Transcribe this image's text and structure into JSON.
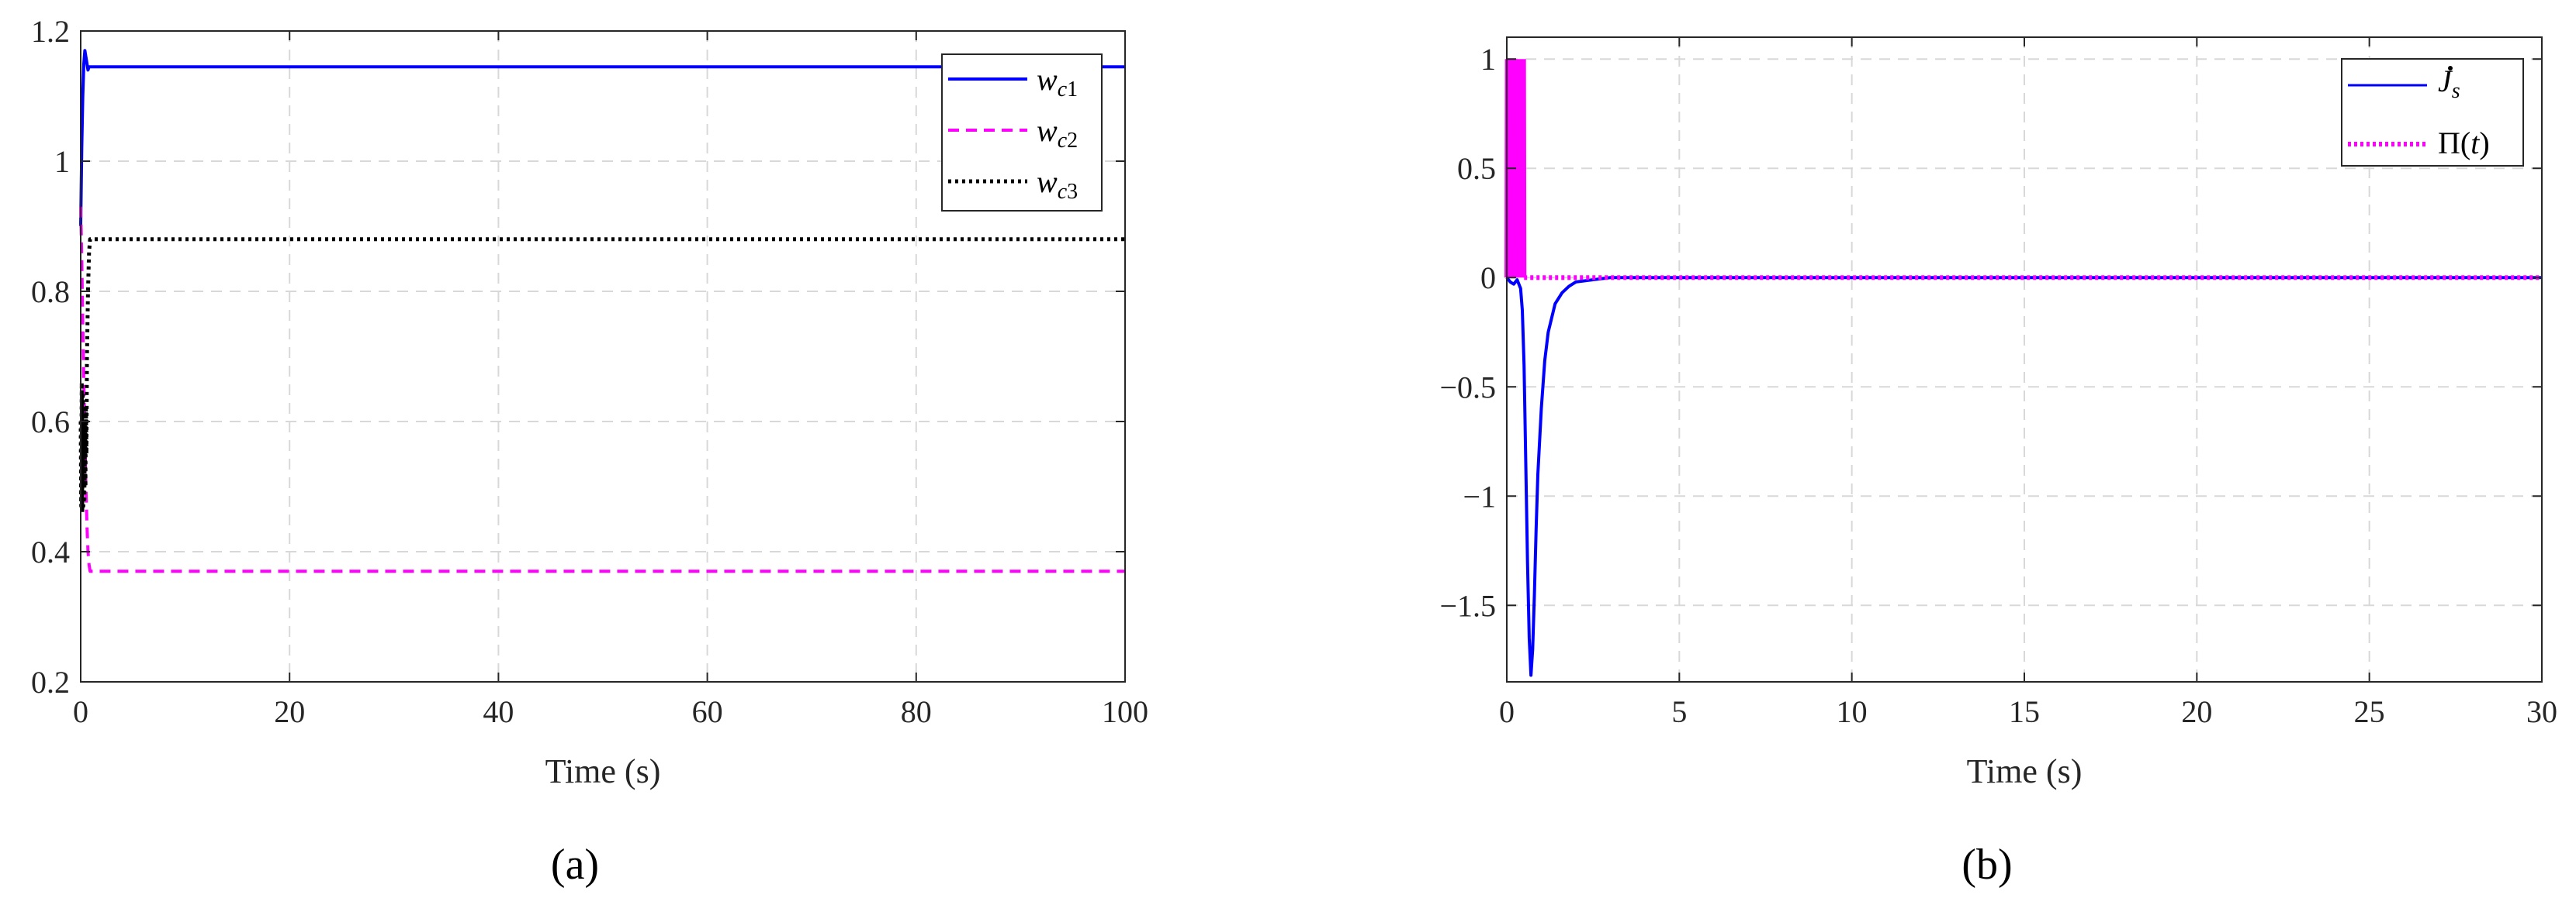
{
  "chart_data": [
    {
      "type": "line",
      "xlabel": "Time (s)",
      "ylabel": "",
      "xlim": [
        0,
        100
      ],
      "ylim": [
        0.2,
        1.2
      ],
      "xticks": [
        "0",
        "20",
        "40",
        "60",
        "80",
        "100"
      ],
      "yticks": [
        "0.2",
        "0.4",
        "0.6",
        "0.8",
        "1",
        "1.2"
      ],
      "grid": true,
      "legend_position": "top-right",
      "caption": "(a)",
      "series": [
        {
          "name": "w_c1",
          "color": "#0000ff",
          "style": "solid",
          "x": [
            0,
            0.1,
            0.2,
            0.3,
            0.4,
            0.5,
            0.6,
            0.7,
            0.8,
            0.9,
            1.0,
            100
          ],
          "y": [
            0.9,
            1.02,
            1.1,
            1.15,
            1.17,
            1.16,
            1.15,
            1.14,
            1.145,
            1.145,
            1.145,
            1.145
          ]
        },
        {
          "name": "w_c2",
          "color": "#ff00ff",
          "style": "dashed",
          "x": [
            0,
            0.1,
            0.2,
            0.3,
            0.4,
            0.5,
            0.6,
            0.7,
            0.8,
            0.9,
            1.0,
            100
          ],
          "y": [
            0.93,
            0.85,
            0.75,
            0.66,
            0.58,
            0.5,
            0.44,
            0.4,
            0.38,
            0.37,
            0.37,
            0.37
          ]
        },
        {
          "name": "w_c3",
          "color": "#000000",
          "style": "dotted",
          "x": [
            0,
            0.05,
            0.1,
            0.15,
            0.2,
            0.25,
            0.3,
            0.35,
            0.4,
            0.45,
            0.5,
            0.55,
            0.6,
            0.7,
            0.8,
            0.9,
            1.0,
            100
          ],
          "y": [
            0.6,
            0.47,
            0.66,
            0.46,
            0.64,
            0.47,
            0.62,
            0.48,
            0.6,
            0.5,
            0.62,
            0.55,
            0.7,
            0.8,
            0.86,
            0.88,
            0.88,
            0.88
          ]
        }
      ]
    },
    {
      "type": "line",
      "xlabel": "Time (s)",
      "ylabel": "",
      "xlim": [
        0,
        30
      ],
      "ylim": [
        -1.85,
        1.1
      ],
      "xticks": [
        "0",
        "5",
        "10",
        "15",
        "20",
        "25",
        "30"
      ],
      "yticks": [
        "-1.5",
        "-1",
        "-0.5",
        "0",
        "0.5",
        "1"
      ],
      "ytick_values": [
        -1.5,
        -1,
        -0.5,
        0,
        0.5,
        1
      ],
      "grid": true,
      "legend_position": "top-right",
      "caption": "(b)",
      "series": [
        {
          "name": "J_s",
          "color": "#0000ff",
          "style": "solid",
          "x": [
            0,
            0.1,
            0.2,
            0.3,
            0.4,
            0.45,
            0.5,
            0.55,
            0.6,
            0.65,
            0.7,
            0.75,
            0.8,
            0.85,
            0.9,
            1.0,
            1.1,
            1.2,
            1.4,
            1.6,
            1.8,
            2.0,
            2.5,
            3.0,
            30
          ],
          "y": [
            0,
            -0.02,
            -0.03,
            -0.01,
            -0.05,
            -0.15,
            -0.4,
            -0.85,
            -1.3,
            -1.65,
            -1.82,
            -1.7,
            -1.45,
            -1.15,
            -0.9,
            -0.6,
            -0.38,
            -0.25,
            -0.12,
            -0.07,
            -0.04,
            -0.02,
            -0.01,
            0,
            0
          ]
        },
        {
          "name": "Π(t)",
          "color": "#ff00ff",
          "style": "dotted",
          "pulse_end": 0.5,
          "pulse_amplitude": 1
        }
      ]
    }
  ]
}
